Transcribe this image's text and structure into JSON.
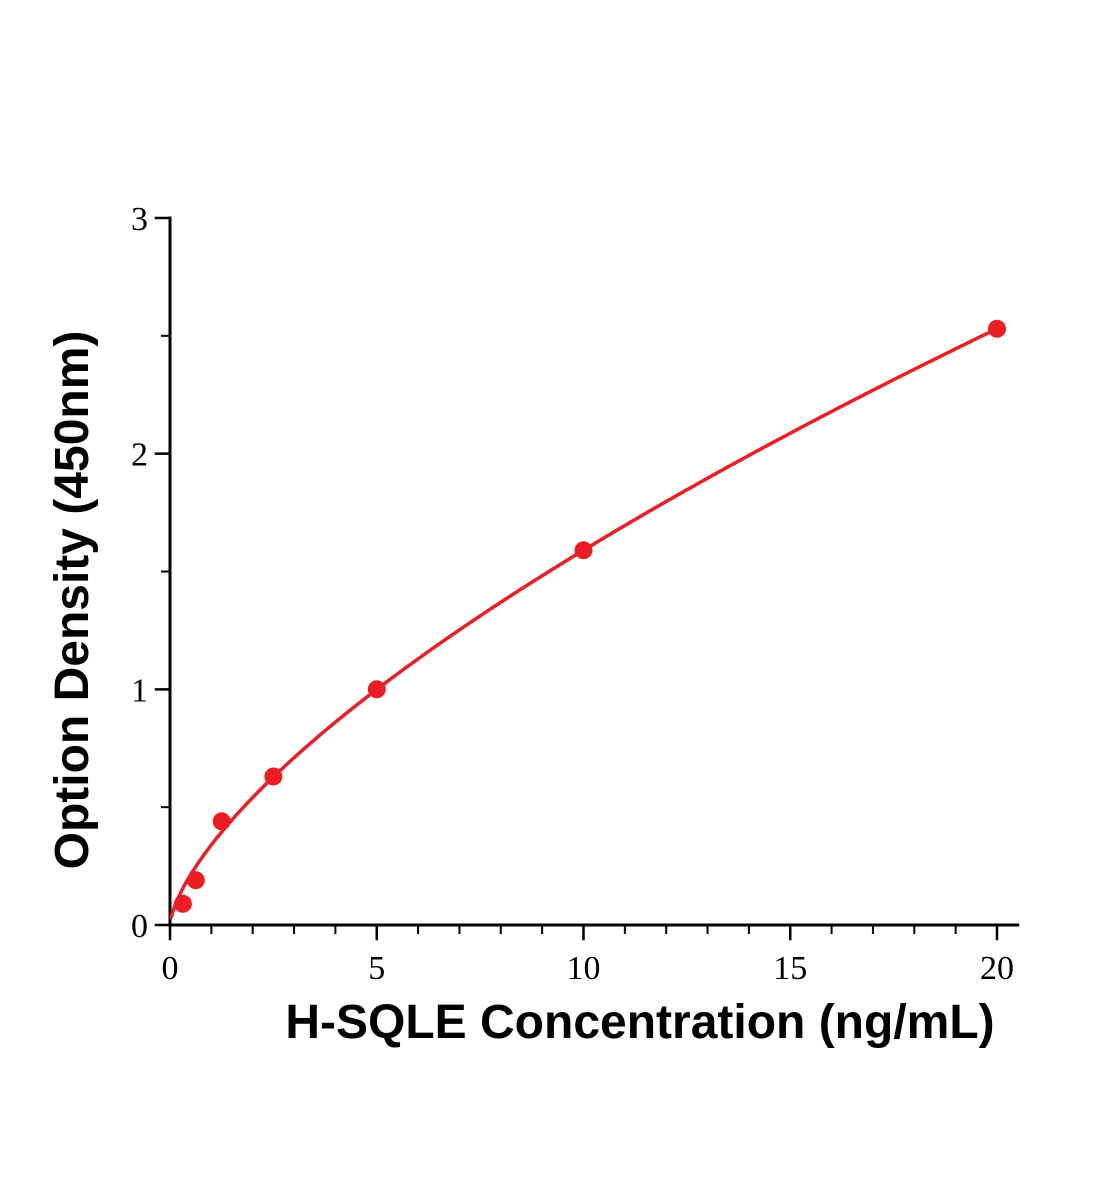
{
  "chart_data": {
    "type": "scatter",
    "title": "",
    "xlabel": "H-SQLE Concentration (ng/mL)",
    "ylabel": "Option Density (450nm)",
    "x": [
      0.3125,
      0.625,
      1.25,
      2.5,
      5,
      10,
      20
    ],
    "y": [
      0.09,
      0.19,
      0.44,
      0.63,
      1.0,
      1.59,
      2.53
    ],
    "xlim": [
      0,
      20.5
    ],
    "ylim": [
      0,
      3
    ],
    "x_ticks": [
      0,
      5,
      10,
      15,
      20
    ],
    "y_ticks": [
      0,
      1,
      2,
      3
    ],
    "x_minor_step": 1,
    "y_minor_step": 0.5,
    "grid": false,
    "legend": "none",
    "marker_color": "#ee1c23",
    "line_color": "#ee1c23",
    "axis_color": "#000000",
    "fit": {
      "type": "power",
      "a": 0.34,
      "b": 0.67
    }
  }
}
